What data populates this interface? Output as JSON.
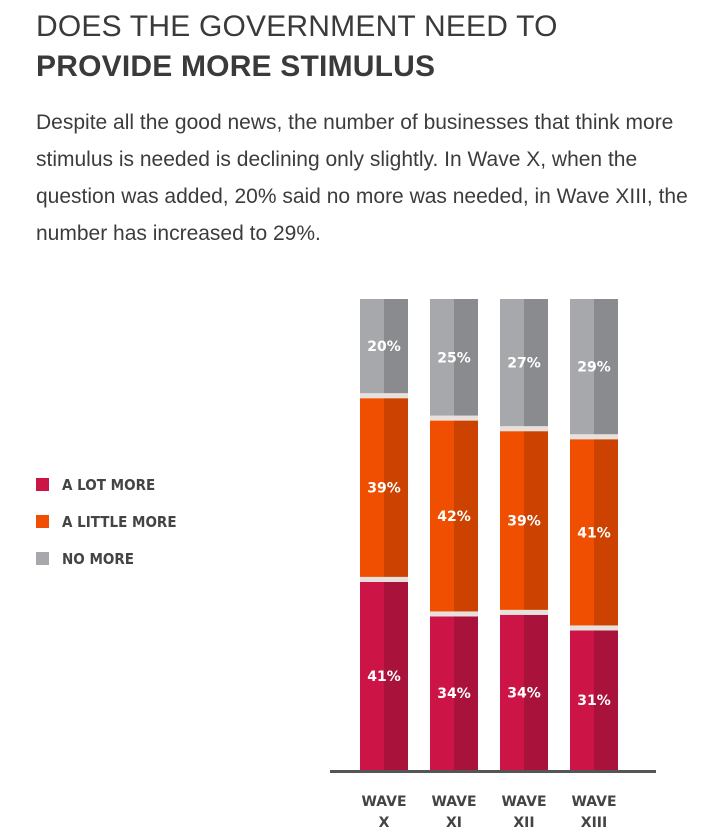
{
  "header": {
    "title_line1": "DOES THE GOVERNMENT NEED TO",
    "title_line2": "PROVIDE MORE STIMULUS",
    "subtitle": "Despite all the good news, the number of businesses that think more stimulus is needed is declining only slightly. In Wave X, when the question was added, 20% said no more was needed, in Wave XIII, the number has increased to 29%."
  },
  "legend": {
    "items": [
      {
        "label": "A LOT MORE",
        "color": "#cc1447"
      },
      {
        "label": "A LITTLE MORE",
        "color": "#f04e00"
      },
      {
        "label": "NO MORE",
        "color": "#a7a8ab"
      }
    ]
  },
  "chart_data": {
    "type": "bar",
    "stacked": true,
    "categories": [
      [
        "WAVE",
        "X"
      ],
      [
        "WAVE",
        "XI"
      ],
      [
        "WAVE",
        "XII"
      ],
      [
        "WAVE",
        "XIII"
      ]
    ],
    "series": [
      {
        "name": "A LOT MORE",
        "values": [
          41,
          34,
          34,
          31
        ],
        "labels": [
          "41%",
          "34%",
          "34%",
          "31%"
        ],
        "color": "#cc1447",
        "shade": "#a8123b",
        "label_color": "#ffffff"
      },
      {
        "name": "A LITTLE MORE",
        "values": [
          39,
          42,
          39,
          41
        ],
        "labels": [
          "39%",
          "42%",
          "39%",
          "41%"
        ],
        "color": "#f04e00",
        "shade": "#cc4200",
        "label_color": "#ffffff"
      },
      {
        "name": "NO MORE",
        "values": [
          20,
          25,
          27,
          29
        ],
        "labels": [
          "20%",
          "25%",
          "27%",
          "29%"
        ],
        "color": "#a7a8ab",
        "shade": "#8a8b8e",
        "label_color": "#ffffff"
      }
    ],
    "separator_color": "#e8e0dc",
    "axis_color": "#555555",
    "legend_position": "left"
  }
}
